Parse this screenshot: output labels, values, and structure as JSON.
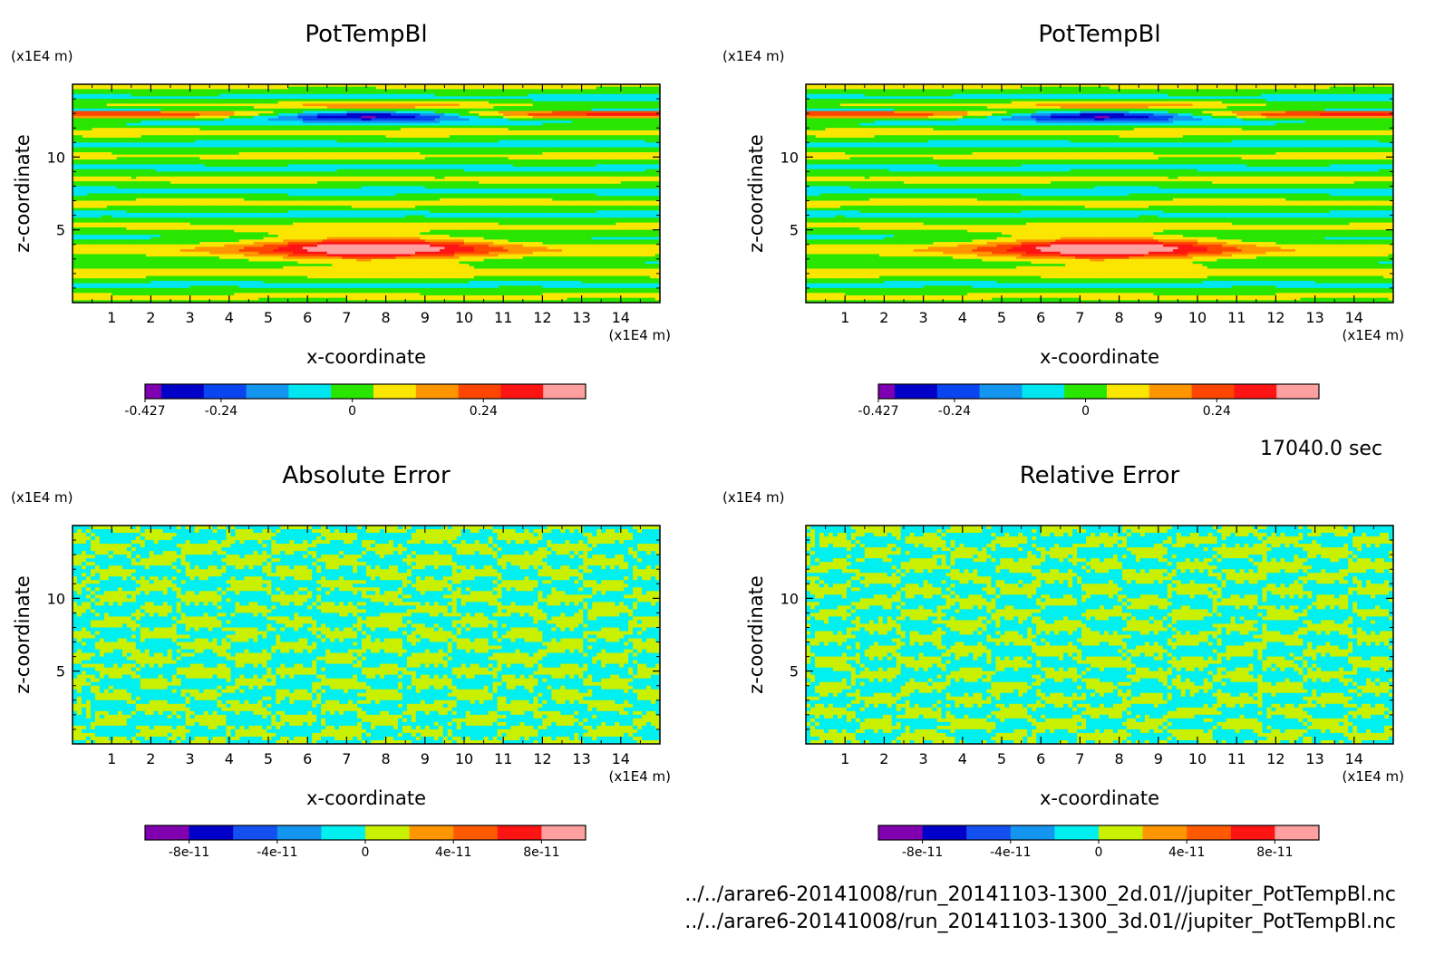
{
  "figure": {
    "time_label": "17040.0 sec",
    "file_1": "../../arare6-20141008/run_20141103-1300_2d.01//jupiter_PotTempBl.nc",
    "file_2": "../../arare6-20141008/run_20141103-1300_3d.01//jupiter_PotTempBl.nc"
  },
  "colors": {
    "potemp_palette": [
      "#7f00b2",
      "#0000c8",
      "#0a46f0",
      "#1496f0",
      "#00e6f0",
      "#28e600",
      "#fae600",
      "#ff9600",
      "#ff4600",
      "#ff1414",
      "#ffa0a0"
    ],
    "error_palette": [
      "#8000b0",
      "#0000c8",
      "#1450f0",
      "#1496f0",
      "#00f0f0",
      "#c8f000",
      "#ff9600",
      "#ff5a00",
      "#ff1414",
      "#ffa0a0"
    ]
  },
  "chart_data": [
    {
      "type": "heatmap",
      "title": "PotTempBl",
      "xlabel": "x-coordinate",
      "ylabel": "z-coordinate",
      "x_unit": "(x1E4 m)",
      "y_unit": "(x1E4 m)",
      "xlim": [
        0,
        15
      ],
      "ylim": [
        0,
        15
      ],
      "xticks": [
        1,
        2,
        3,
        4,
        5,
        6,
        7,
        8,
        9,
        10,
        11,
        12,
        13,
        14
      ],
      "yticks": [
        5,
        10
      ],
      "colorbar": {
        "min": -0.427,
        "max": 0.427,
        "levels": 11,
        "tick_values": [
          -0.427,
          -0.24,
          0,
          0.24
        ],
        "tick_labels": [
          "-0.427",
          "-0.24",
          "0",
          "0.24"
        ]
      }
    },
    {
      "type": "heatmap",
      "title": "PotTempBl",
      "xlabel": "x-coordinate",
      "ylabel": "z-coordinate",
      "x_unit": "(x1E4 m)",
      "y_unit": "(x1E4 m)",
      "xlim": [
        0,
        15
      ],
      "ylim": [
        0,
        15
      ],
      "xticks": [
        1,
        2,
        3,
        4,
        5,
        6,
        7,
        8,
        9,
        10,
        11,
        12,
        13,
        14
      ],
      "yticks": [
        5,
        10
      ],
      "colorbar": {
        "min": -0.427,
        "max": 0.427,
        "levels": 11,
        "tick_values": [
          -0.427,
          -0.24,
          0,
          0.24
        ],
        "tick_labels": [
          "-0.427",
          "-0.24",
          "0",
          "0.24"
        ]
      }
    },
    {
      "type": "heatmap",
      "title": "Absolute Error",
      "xlabel": "x-coordinate",
      "ylabel": "z-coordinate",
      "x_unit": "(x1E4 m)",
      "y_unit": "(x1E4 m)",
      "xlim": [
        0,
        15
      ],
      "ylim": [
        0,
        15
      ],
      "xticks": [
        1,
        2,
        3,
        4,
        5,
        6,
        7,
        8,
        9,
        10,
        11,
        12,
        13,
        14
      ],
      "yticks": [
        5,
        10
      ],
      "colorbar": {
        "min": -1e-10,
        "max": 1e-10,
        "levels": 10,
        "tick_values": [
          -8e-11,
          -4e-11,
          0,
          4e-11,
          8e-11
        ],
        "tick_labels": [
          "-8e-11",
          "-4e-11",
          "0",
          "4e-11",
          "8e-11"
        ]
      }
    },
    {
      "type": "heatmap",
      "title": "Relative Error",
      "xlabel": "x-coordinate",
      "ylabel": "z-coordinate",
      "x_unit": "(x1E4 m)",
      "y_unit": "(x1E4 m)",
      "xlim": [
        0,
        15
      ],
      "ylim": [
        0,
        15
      ],
      "xticks": [
        1,
        2,
        3,
        4,
        5,
        6,
        7,
        8,
        9,
        10,
        11,
        12,
        13,
        14
      ],
      "yticks": [
        5,
        10
      ],
      "colorbar": {
        "min": -1e-10,
        "max": 1e-10,
        "levels": 10,
        "tick_values": [
          -8e-11,
          -4e-11,
          0,
          4e-11,
          8e-11
        ],
        "tick_labels": [
          "-8e-11",
          "-4e-11",
          "0",
          "4e-11",
          "8e-11"
        ]
      }
    }
  ]
}
